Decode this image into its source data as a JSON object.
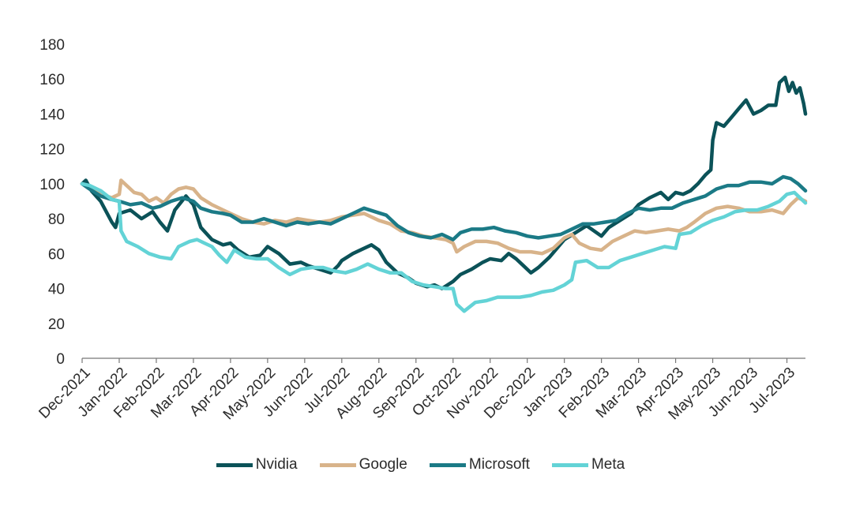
{
  "chart_data": {
    "type": "line",
    "title": "",
    "xlabel": "",
    "ylabel": "",
    "ylim": [
      0,
      180
    ],
    "yticks": [
      0,
      20,
      40,
      60,
      80,
      100,
      120,
      140,
      160,
      180
    ],
    "x_months": [
      "Dec-2021",
      "Jan-2022",
      "Feb-2022",
      "Mar-2022",
      "Apr-2022",
      "May-2022",
      "Jun-2022",
      "Jul-2022",
      "Aug-2022",
      "Sep-2022",
      "Oct-2022",
      "Nov-2022",
      "Dec-2022",
      "Jan-2023",
      "Feb-2023",
      "Mar-2023",
      "Apr-2023",
      "May-2023",
      "Jun-2023",
      "Jul-2023"
    ],
    "x_range": [
      0,
      19.5
    ],
    "legend_position": "bottom",
    "series": [
      {
        "name": "Nvidia",
        "color": "#0b5258",
        "points": [
          [
            0,
            100
          ],
          [
            0.1,
            102
          ],
          [
            0.25,
            96
          ],
          [
            0.5,
            90
          ],
          [
            0.8,
            78
          ],
          [
            0.9,
            75
          ],
          [
            1.0,
            83
          ],
          [
            1.3,
            85
          ],
          [
            1.6,
            80
          ],
          [
            1.9,
            84
          ],
          [
            2.1,
            78
          ],
          [
            2.3,
            73
          ],
          [
            2.5,
            85
          ],
          [
            2.8,
            93
          ],
          [
            3.0,
            88
          ],
          [
            3.2,
            75
          ],
          [
            3.5,
            68
          ],
          [
            3.8,
            65
          ],
          [
            4.0,
            66
          ],
          [
            4.2,
            62
          ],
          [
            4.5,
            58
          ],
          [
            4.8,
            59
          ],
          [
            5.0,
            64
          ],
          [
            5.3,
            60
          ],
          [
            5.6,
            54
          ],
          [
            5.9,
            55
          ],
          [
            6.1,
            53
          ],
          [
            6.4,
            51
          ],
          [
            6.7,
            49
          ],
          [
            6.9,
            53
          ],
          [
            7.0,
            56
          ],
          [
            7.3,
            60
          ],
          [
            7.6,
            63
          ],
          [
            7.8,
            65
          ],
          [
            8.0,
            62
          ],
          [
            8.2,
            55
          ],
          [
            8.5,
            49
          ],
          [
            8.8,
            46
          ],
          [
            9.0,
            43
          ],
          [
            9.3,
            41
          ],
          [
            9.5,
            42
          ],
          [
            9.7,
            40
          ],
          [
            10.0,
            44
          ],
          [
            10.2,
            48
          ],
          [
            10.5,
            51
          ],
          [
            10.8,
            55
          ],
          [
            11.0,
            57
          ],
          [
            11.3,
            56
          ],
          [
            11.5,
            60
          ],
          [
            11.7,
            57
          ],
          [
            11.9,
            53
          ],
          [
            12.1,
            49
          ],
          [
            12.3,
            52
          ],
          [
            12.6,
            58
          ],
          [
            12.8,
            63
          ],
          [
            13.0,
            68
          ],
          [
            13.3,
            72
          ],
          [
            13.6,
            76
          ],
          [
            13.8,
            73
          ],
          [
            14.0,
            70
          ],
          [
            14.2,
            75
          ],
          [
            14.5,
            79
          ],
          [
            14.8,
            83
          ],
          [
            15.0,
            88
          ],
          [
            15.3,
            92
          ],
          [
            15.6,
            95
          ],
          [
            15.8,
            91
          ],
          [
            16.0,
            95
          ],
          [
            16.2,
            94
          ],
          [
            16.4,
            96
          ],
          [
            16.6,
            100
          ],
          [
            16.8,
            105
          ],
          [
            16.95,
            108
          ],
          [
            17.0,
            125
          ],
          [
            17.1,
            135
          ],
          [
            17.3,
            133
          ],
          [
            17.5,
            138
          ],
          [
            17.7,
            143
          ],
          [
            17.9,
            148
          ],
          [
            18.1,
            140
          ],
          [
            18.3,
            142
          ],
          [
            18.5,
            145
          ],
          [
            18.7,
            145
          ],
          [
            18.8,
            158
          ],
          [
            18.95,
            161
          ],
          [
            19.05,
            153
          ],
          [
            19.15,
            158
          ],
          [
            19.25,
            152
          ],
          [
            19.35,
            155
          ],
          [
            19.45,
            146
          ],
          [
            19.5,
            140
          ]
        ]
      },
      {
        "name": "Google",
        "color": "#d8b38a",
        "points": [
          [
            0,
            100
          ],
          [
            0.2,
            98
          ],
          [
            0.5,
            94
          ],
          [
            0.8,
            92
          ],
          [
            1.0,
            94
          ],
          [
            1.05,
            102
          ],
          [
            1.2,
            99
          ],
          [
            1.4,
            95
          ],
          [
            1.6,
            94
          ],
          [
            1.8,
            90
          ],
          [
            2.0,
            92
          ],
          [
            2.2,
            89
          ],
          [
            2.4,
            94
          ],
          [
            2.6,
            97
          ],
          [
            2.8,
            98
          ],
          [
            3.0,
            97
          ],
          [
            3.2,
            92
          ],
          [
            3.5,
            88
          ],
          [
            3.8,
            85
          ],
          [
            4.0,
            83
          ],
          [
            4.3,
            80
          ],
          [
            4.6,
            78
          ],
          [
            4.9,
            77
          ],
          [
            5.2,
            79
          ],
          [
            5.5,
            78
          ],
          [
            5.8,
            80
          ],
          [
            6.1,
            79
          ],
          [
            6.4,
            78
          ],
          [
            6.7,
            79
          ],
          [
            7.0,
            81
          ],
          [
            7.3,
            82
          ],
          [
            7.6,
            83
          ],
          [
            7.8,
            81
          ],
          [
            8.0,
            79
          ],
          [
            8.3,
            77
          ],
          [
            8.6,
            73
          ],
          [
            8.9,
            72
          ],
          [
            9.2,
            70
          ],
          [
            9.5,
            69
          ],
          [
            9.8,
            68
          ],
          [
            10.0,
            66
          ],
          [
            10.1,
            61
          ],
          [
            10.3,
            64
          ],
          [
            10.6,
            67
          ],
          [
            10.9,
            67
          ],
          [
            11.2,
            66
          ],
          [
            11.5,
            63
          ],
          [
            11.8,
            61
          ],
          [
            12.1,
            61
          ],
          [
            12.4,
            60
          ],
          [
            12.7,
            63
          ],
          [
            13.0,
            69
          ],
          [
            13.2,
            71
          ],
          [
            13.4,
            66
          ],
          [
            13.7,
            63
          ],
          [
            14.0,
            62
          ],
          [
            14.3,
            67
          ],
          [
            14.6,
            70
          ],
          [
            14.9,
            73
          ],
          [
            15.2,
            72
          ],
          [
            15.5,
            73
          ],
          [
            15.8,
            74
          ],
          [
            16.1,
            73
          ],
          [
            16.3,
            75
          ],
          [
            16.5,
            78
          ],
          [
            16.8,
            83
          ],
          [
            17.1,
            86
          ],
          [
            17.4,
            87
          ],
          [
            17.7,
            86
          ],
          [
            18.0,
            84
          ],
          [
            18.3,
            84
          ],
          [
            18.6,
            85
          ],
          [
            18.9,
            83
          ],
          [
            19.1,
            88
          ],
          [
            19.3,
            92
          ],
          [
            19.5,
            90
          ]
        ]
      },
      {
        "name": "Microsoft",
        "color": "#1b7a86",
        "points": [
          [
            0,
            100
          ],
          [
            0.2,
            97
          ],
          [
            0.5,
            93
          ],
          [
            0.8,
            91
          ],
          [
            1.0,
            90
          ],
          [
            1.3,
            88
          ],
          [
            1.6,
            89
          ],
          [
            1.9,
            86
          ],
          [
            2.1,
            87
          ],
          [
            2.4,
            90
          ],
          [
            2.7,
            92
          ],
          [
            3.0,
            90
          ],
          [
            3.2,
            86
          ],
          [
            3.5,
            84
          ],
          [
            3.8,
            83
          ],
          [
            4.0,
            82
          ],
          [
            4.3,
            78
          ],
          [
            4.6,
            78
          ],
          [
            4.9,
            80
          ],
          [
            5.2,
            78
          ],
          [
            5.5,
            76
          ],
          [
            5.8,
            78
          ],
          [
            6.1,
            77
          ],
          [
            6.4,
            78
          ],
          [
            6.7,
            77
          ],
          [
            7.0,
            80
          ],
          [
            7.3,
            83
          ],
          [
            7.6,
            86
          ],
          [
            7.9,
            84
          ],
          [
            8.2,
            82
          ],
          [
            8.5,
            76
          ],
          [
            8.8,
            72
          ],
          [
            9.1,
            70
          ],
          [
            9.4,
            69
          ],
          [
            9.7,
            71
          ],
          [
            10.0,
            68
          ],
          [
            10.2,
            72
          ],
          [
            10.5,
            74
          ],
          [
            10.8,
            74
          ],
          [
            11.1,
            75
          ],
          [
            11.4,
            73
          ],
          [
            11.7,
            72
          ],
          [
            12.0,
            70
          ],
          [
            12.3,
            69
          ],
          [
            12.6,
            70
          ],
          [
            12.9,
            71
          ],
          [
            13.2,
            74
          ],
          [
            13.5,
            77
          ],
          [
            13.8,
            77
          ],
          [
            14.1,
            78
          ],
          [
            14.4,
            79
          ],
          [
            14.7,
            83
          ],
          [
            15.0,
            86
          ],
          [
            15.3,
            85
          ],
          [
            15.6,
            86
          ],
          [
            15.9,
            86
          ],
          [
            16.2,
            89
          ],
          [
            16.5,
            91
          ],
          [
            16.8,
            93
          ],
          [
            17.1,
            97
          ],
          [
            17.4,
            99
          ],
          [
            17.7,
            99
          ],
          [
            18.0,
            101
          ],
          [
            18.3,
            101
          ],
          [
            18.6,
            100
          ],
          [
            18.9,
            104
          ],
          [
            19.1,
            103
          ],
          [
            19.3,
            100
          ],
          [
            19.5,
            96
          ]
        ]
      },
      {
        "name": "Meta",
        "color": "#63d3d6",
        "points": [
          [
            0,
            100
          ],
          [
            0.2,
            99
          ],
          [
            0.5,
            96
          ],
          [
            0.8,
            91
          ],
          [
            1.0,
            90
          ],
          [
            1.05,
            73
          ],
          [
            1.2,
            67
          ],
          [
            1.5,
            64
          ],
          [
            1.8,
            60
          ],
          [
            2.1,
            58
          ],
          [
            2.4,
            57
          ],
          [
            2.6,
            64
          ],
          [
            2.9,
            67
          ],
          [
            3.1,
            68
          ],
          [
            3.3,
            66
          ],
          [
            3.5,
            64
          ],
          [
            3.7,
            59
          ],
          [
            3.9,
            55
          ],
          [
            4.1,
            62
          ],
          [
            4.4,
            58
          ],
          [
            4.7,
            57
          ],
          [
            5.0,
            57
          ],
          [
            5.3,
            52
          ],
          [
            5.6,
            48
          ],
          [
            5.9,
            51
          ],
          [
            6.2,
            52
          ],
          [
            6.5,
            52
          ],
          [
            6.8,
            50
          ],
          [
            7.1,
            49
          ],
          [
            7.4,
            51
          ],
          [
            7.7,
            54
          ],
          [
            8.0,
            51
          ],
          [
            8.3,
            49
          ],
          [
            8.6,
            49
          ],
          [
            8.9,
            44
          ],
          [
            9.2,
            42
          ],
          [
            9.5,
            41
          ],
          [
            9.8,
            40
          ],
          [
            10.0,
            40
          ],
          [
            10.1,
            31
          ],
          [
            10.3,
            27
          ],
          [
            10.6,
            32
          ],
          [
            10.9,
            33
          ],
          [
            11.2,
            35
          ],
          [
            11.5,
            35
          ],
          [
            11.8,
            35
          ],
          [
            12.1,
            36
          ],
          [
            12.4,
            38
          ],
          [
            12.7,
            39
          ],
          [
            13.0,
            42
          ],
          [
            13.2,
            45
          ],
          [
            13.3,
            55
          ],
          [
            13.6,
            56
          ],
          [
            13.9,
            52
          ],
          [
            14.2,
            52
          ],
          [
            14.5,
            56
          ],
          [
            14.8,
            58
          ],
          [
            15.1,
            60
          ],
          [
            15.4,
            62
          ],
          [
            15.7,
            64
          ],
          [
            16.0,
            63
          ],
          [
            16.1,
            71
          ],
          [
            16.4,
            72
          ],
          [
            16.7,
            76
          ],
          [
            17.0,
            79
          ],
          [
            17.3,
            81
          ],
          [
            17.6,
            84
          ],
          [
            17.9,
            85
          ],
          [
            18.2,
            85
          ],
          [
            18.5,
            87
          ],
          [
            18.8,
            90
          ],
          [
            19.0,
            94
          ],
          [
            19.2,
            95
          ],
          [
            19.4,
            91
          ],
          [
            19.5,
            89
          ]
        ]
      }
    ]
  }
}
